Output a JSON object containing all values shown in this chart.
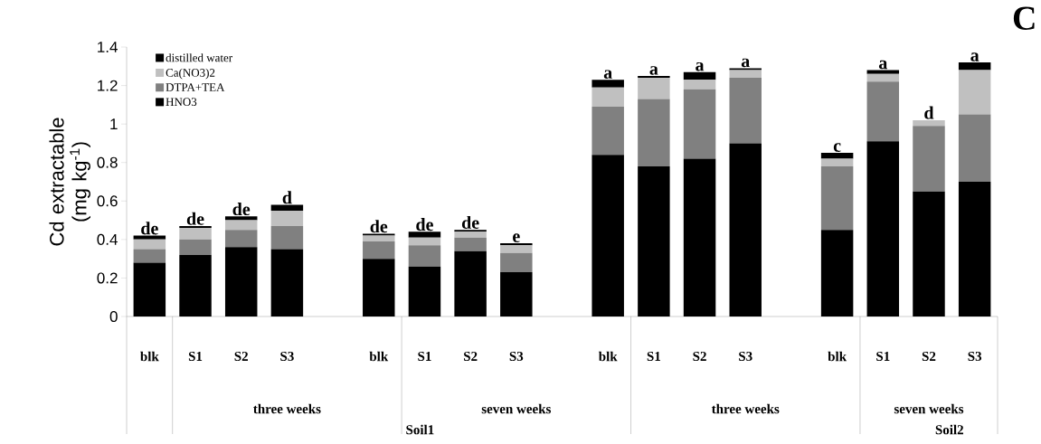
{
  "chart_data": {
    "type": "bar",
    "title": "C",
    "ylabel": "Cd extractable (mg kg$^{-1}$)",
    "categories": [
      "blk",
      "S1",
      "S2",
      "S3",
      null,
      "blk",
      "S1",
      "S2",
      "S3",
      null,
      "blk",
      "S1",
      "S2",
      "S3",
      null,
      "blk",
      "S1",
      "S2",
      "S3"
    ],
    "series": [
      {
        "name": "HNO3",
        "color": "#000000",
        "values": [
          0.28,
          0.32,
          0.36,
          0.35,
          null,
          0.3,
          0.26,
          0.34,
          0.23,
          null,
          0.84,
          0.78,
          0.82,
          0.9,
          null,
          0.45,
          0.91,
          0.65,
          0.7
        ]
      },
      {
        "name": "DTPA+TEA",
        "color": "#808080",
        "values": [
          0.07,
          0.08,
          0.09,
          0.12,
          null,
          0.09,
          0.11,
          0.07,
          0.1,
          null,
          0.25,
          0.35,
          0.36,
          0.34,
          null,
          0.33,
          0.31,
          0.34,
          0.35
        ]
      },
      {
        "name": "Ca(NO3)2",
        "color": "#c0c0c0",
        "values": [
          0.05,
          0.06,
          0.05,
          0.08,
          null,
          0.03,
          0.04,
          0.03,
          0.04,
          null,
          0.1,
          0.11,
          0.05,
          0.04,
          null,
          0.04,
          0.04,
          0.03,
          0.23
        ]
      },
      {
        "name": "distilled water",
        "color": "#000000",
        "values": [
          0.02,
          0.01,
          0.02,
          0.03,
          null,
          0.01,
          0.03,
          0.01,
          0.01,
          null,
          0.04,
          0.01,
          0.04,
          0.01,
          null,
          0.03,
          0.02,
          0,
          0.04
        ],
        "value_labels": [
          "de",
          "de",
          "de",
          "d",
          null,
          "de",
          "de",
          "de",
          "e",
          null,
          "a",
          "a",
          "a",
          "a",
          null,
          "c",
          "a",
          "d",
          "a"
        ]
      }
    ],
    "stacked": true,
    "legend": "top left",
    "ylim": [
      0,
      1.4
    ],
    "yticks": [
      0,
      0.2,
      0.4,
      0.6,
      0.8,
      1,
      1.2,
      1.4
    ],
    "annotations": [
      "three weeks",
      "seven weeks",
      "three weeks",
      "seven weeks",
      "Soil1",
      "Soil2"
    ]
  }
}
